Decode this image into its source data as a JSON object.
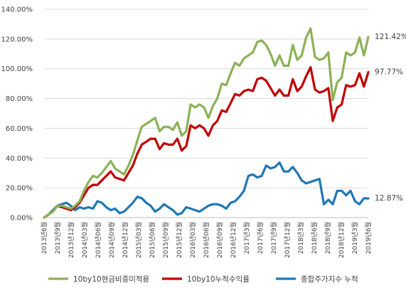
{
  "chart_data": {
    "type": "line",
    "title": "",
    "xlabel": "",
    "ylabel": "",
    "ylim": [
      0,
      140
    ],
    "yticks": [
      "0.00%",
      "20.00%",
      "40.00%",
      "60.00%",
      "80.00%",
      "100.00%",
      "120.00%",
      "140.00%"
    ],
    "grid": "horizontal",
    "legend_position": "bottom",
    "x_tick_labels": [
      "2013년6월",
      "2013년9월",
      "2013년12월",
      "2014년03월",
      "2014년06월",
      "2014년09월",
      "2014년12월",
      "2015년03월",
      "2015년06월",
      "2015년09월",
      "2015년12월",
      "2016년03월",
      "2016년06월",
      "2016년09월",
      "2016년12월",
      "2017년3월",
      "2017년6월",
      "2017년9월",
      "2017년12월",
      "2018년3월",
      "2018년6월",
      "2018년9월",
      "2018년12월",
      "2019년3월",
      "2019년6월"
    ],
    "series": [
      {
        "name": "10by10현금비중미적용",
        "color": "#8CB157",
        "end_label": "121.42%",
        "values": [
          0,
          2,
          4,
          8,
          8,
          7,
          6,
          8,
          11,
          18,
          24,
          28,
          27,
          30,
          34,
          38,
          33,
          31,
          29,
          35,
          42,
          52,
          61,
          63,
          65,
          67,
          58,
          61,
          61,
          59,
          64,
          55,
          58,
          76,
          74,
          76,
          74,
          67,
          75,
          80,
          90,
          89,
          97,
          104,
          102,
          107,
          109,
          111,
          118,
          119,
          116,
          110,
          102,
          109,
          102,
          102,
          116,
          106,
          109,
          121,
          127,
          108,
          106,
          107,
          111,
          79,
          91,
          94,
          111,
          109,
          111,
          121,
          109,
          121.42
        ]
      },
      {
        "name": "10by10누적수익률",
        "color": "#C00000",
        "end_label": "97.77%",
        "values": [
          0,
          2,
          4,
          8,
          7,
          6,
          5,
          7,
          10,
          15,
          20,
          22,
          22,
          25,
          28,
          31,
          27,
          26,
          25,
          30,
          35,
          43,
          49,
          51,
          53,
          53,
          46,
          50,
          49,
          49,
          53,
          45,
          48,
          62,
          60,
          62,
          60,
          55,
          62,
          65,
          72,
          71,
          77,
          83,
          82,
          85,
          86,
          85,
          93,
          94,
          92,
          87,
          82,
          86,
          82,
          82,
          93,
          85,
          88,
          95,
          101,
          86,
          84,
          85,
          87,
          65,
          74,
          76,
          89,
          88,
          89,
          97,
          88,
          97.77
        ]
      },
      {
        "name": "종합주가지수 누적",
        "color": "#1F77B4",
        "end_label": "12.87%",
        "values": [
          0,
          2,
          5,
          8,
          9,
          10,
          8,
          5,
          7,
          6,
          7,
          6,
          11,
          10,
          7,
          5,
          6,
          3,
          4,
          7,
          10,
          14,
          13,
          10,
          8,
          4,
          6,
          9,
          7,
          5,
          2,
          3,
          7,
          6,
          5,
          4,
          6,
          8,
          9,
          9,
          8,
          6,
          10,
          11,
          14,
          18,
          28,
          29,
          27,
          28,
          35,
          33,
          34,
          37,
          31,
          31,
          34,
          30,
          25,
          23,
          24,
          25,
          26,
          9,
          12,
          9,
          18,
          18,
          15,
          18,
          11,
          9,
          13,
          12.87
        ]
      }
    ]
  }
}
